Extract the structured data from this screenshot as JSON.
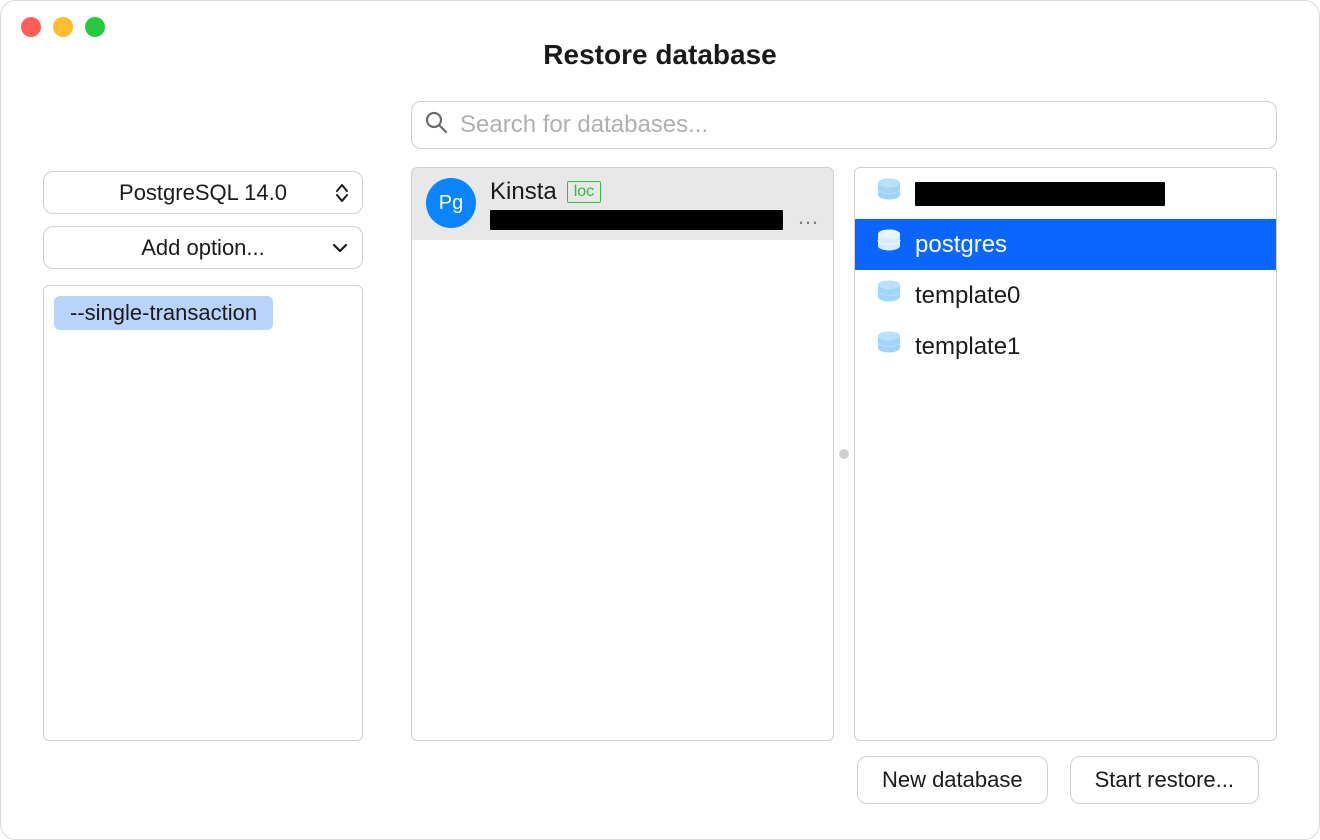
{
  "window": {
    "title": "Restore database",
    "traffic_colors": {
      "close": "#ff5f57",
      "minimize": "#febc2e",
      "zoom": "#28c840"
    }
  },
  "sidebar": {
    "version_select": "PostgreSQL 14.0",
    "add_option_label": "Add option...",
    "options": [
      {
        "flag": "--single-transaction"
      }
    ]
  },
  "search": {
    "placeholder": "Search for databases..."
  },
  "connections": [
    {
      "badge": "Pg",
      "name": "Kinsta",
      "tag": "loc",
      "subtitle_redacted": true,
      "selected": true
    }
  ],
  "databases": [
    {
      "name_redacted": true,
      "selected": false
    },
    {
      "name": "postgres",
      "selected": true
    },
    {
      "name": "template0",
      "selected": false
    },
    {
      "name": "template1",
      "selected": false
    }
  ],
  "footer": {
    "new_db_label": "New database",
    "start_restore_label": "Start restore..."
  },
  "colors": {
    "accent": "#0a66ff",
    "pg_badge": "#0a84ff",
    "loc_tag": "#2fbf3a",
    "option_pill_bg": "#b9d3fb",
    "db_icon_top": "#b8e0fb",
    "db_icon_body": "#a0d4f8"
  }
}
